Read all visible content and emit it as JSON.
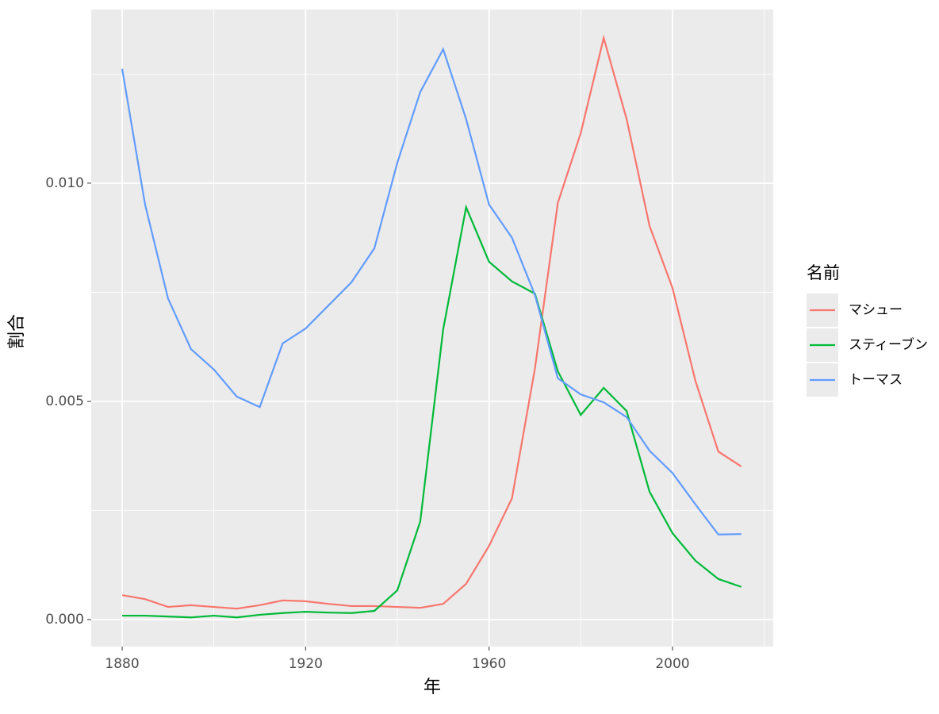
{
  "chart_data": {
    "type": "line",
    "x_label": "年",
    "y_label": "割合",
    "legend_title": "名前",
    "x": [
      1880,
      1885,
      1890,
      1895,
      1900,
      1905,
      1910,
      1915,
      1920,
      1925,
      1930,
      1935,
      1940,
      1945,
      1950,
      1955,
      1960,
      1965,
      1970,
      1975,
      1980,
      1985,
      1990,
      1995,
      2000,
      2005,
      2010,
      2015
    ],
    "series": [
      {
        "name": "マシュー",
        "color": "#f8766d",
        "values": [
          0.00056,
          0.00047,
          0.00029,
          0.00033,
          0.00029,
          0.00025,
          0.00033,
          0.00044,
          0.00042,
          0.00036,
          0.00031,
          0.00031,
          0.00029,
          0.00027,
          0.00036,
          0.00082,
          0.00169,
          0.00278,
          0.00575,
          0.00955,
          0.01115,
          0.01333,
          0.01147,
          0.00902,
          0.0076,
          0.00547,
          0.00385,
          0.00351
        ]
      },
      {
        "name": "スティーブン",
        "color": "#00ba38",
        "values": [
          9e-05,
          9e-05,
          7e-05,
          5e-05,
          9e-05,
          5e-05,
          0.00011,
          0.00015,
          0.00018,
          0.00016,
          0.00015,
          0.0002,
          0.00067,
          0.00225,
          0.00665,
          0.00945,
          0.0082,
          0.00775,
          0.00747,
          0.00569,
          0.00469,
          0.00531,
          0.00478,
          0.00293,
          0.00198,
          0.00135,
          0.00093,
          0.00075
        ]
      },
      {
        "name": "トーマス",
        "color": "#619cff",
        "values": [
          0.01262,
          0.00951,
          0.00736,
          0.0062,
          0.00573,
          0.00511,
          0.00487,
          0.00633,
          0.00667,
          0.0072,
          0.00773,
          0.00851,
          0.01047,
          0.01209,
          0.01307,
          0.01147,
          0.00951,
          0.00875,
          0.00744,
          0.00553,
          0.00516,
          0.00498,
          0.00464,
          0.00387,
          0.00336,
          0.00264,
          0.00195,
          0.00196
        ]
      }
    ],
    "xlim": [
      1873.25,
      2021.97
    ],
    "ylim": [
      -0.000618,
      0.01398
    ],
    "xticks": [
      1880,
      1920,
      1960,
      2000
    ],
    "yticks": [
      {
        "value": 0,
        "label": "0.000"
      },
      {
        "value": 0.005,
        "label": "0.005"
      },
      {
        "value": 0.01,
        "label": "0.010"
      }
    ],
    "x_minor_ticks": [
      1900,
      1940,
      1980,
      2020
    ],
    "y_minor_ticks": [
      0.0025,
      0.0075,
      0.0125
    ],
    "grid": true,
    "legend": "right"
  }
}
